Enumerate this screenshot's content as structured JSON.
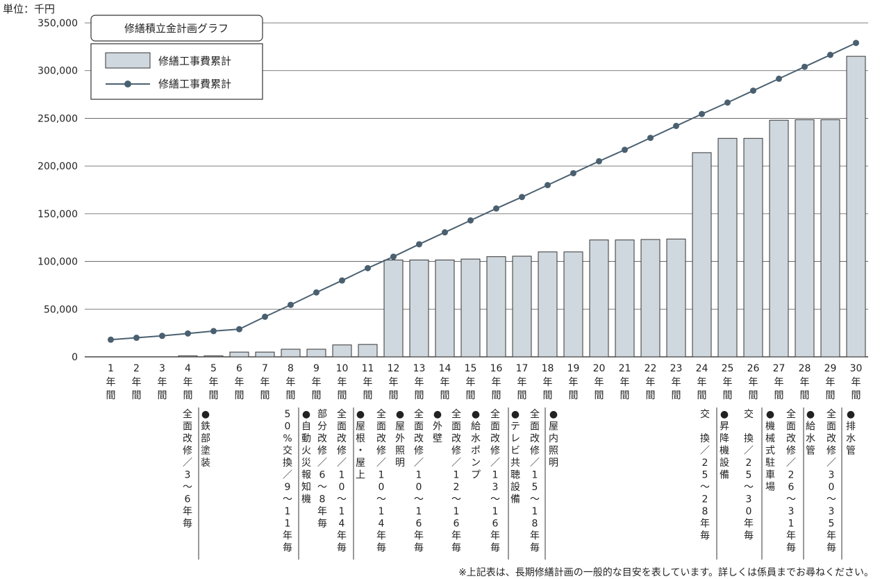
{
  "unit_label": "単位：千円",
  "footnote": "※上記表は、長期修繕計画の一般的な目安を表しています。詳しくは係員までお尋ねください。",
  "chart_data": {
    "type": "bar",
    "title": "修繕積立金計画グラフ",
    "ylim": [
      0,
      350000
    ],
    "y_ticks": [
      0,
      50000,
      100000,
      150000,
      200000,
      250000,
      300000,
      350000
    ],
    "y_tick_labels": [
      "0",
      "50,000",
      "100,000",
      "150,000",
      "200,000",
      "250,000",
      "300,000",
      "350,000"
    ],
    "grid": true,
    "legend_position": "top-left",
    "categories": [
      "1年間",
      "2年間",
      "3年間",
      "4年間",
      "5年間",
      "6年間",
      "7年間",
      "8年間",
      "9年間",
      "10年間",
      "11年間",
      "12年間",
      "13年間",
      "14年間",
      "15年間",
      "16年間",
      "17年間",
      "18年間",
      "19年間",
      "20年間",
      "21年間",
      "22年間",
      "23年間",
      "24年間",
      "25年間",
      "26年間",
      "27年間",
      "28年間",
      "29年間",
      "30年間"
    ],
    "category_numbers": [
      "1",
      "2",
      "3",
      "4",
      "5",
      "6",
      "7",
      "8",
      "9",
      "10",
      "11",
      "12",
      "13",
      "14",
      "15",
      "16",
      "17",
      "18",
      "19",
      "20",
      "21",
      "22",
      "23",
      "24",
      "25",
      "26",
      "27",
      "28",
      "29",
      "30"
    ],
    "category_suffix": [
      "年",
      "間"
    ],
    "series": [
      {
        "name": "修繕工事費累計",
        "type": "bar",
        "color": "#cfd8de",
        "values": [
          0,
          0,
          0,
          1000,
          1000,
          5000,
          5000,
          8000,
          8000,
          12500,
          13000,
          101500,
          101500,
          101500,
          102500,
          105000,
          105500,
          110000,
          110000,
          122500,
          122500,
          123000,
          123500,
          214000,
          229000,
          229000,
          248000,
          248500,
          248500,
          315000
        ]
      },
      {
        "name": "修繕工事費累計",
        "type": "line",
        "color": "#4a6070",
        "values": [
          18000,
          20000,
          22000,
          24500,
          27000,
          29000,
          42000,
          54500,
          67500,
          80000,
          93000,
          105000,
          118000,
          130500,
          143000,
          155500,
          167500,
          180000,
          192500,
          205000,
          217000,
          229500,
          242000,
          254500,
          266500,
          279000,
          291500,
          304000,
          316500,
          329000
        ]
      }
    ],
    "annotations": [
      {
        "after": 4,
        "marker": "",
        "text": "全面改修／3〜6年毎"
      },
      {
        "after": 4,
        "marker": "●",
        "text": "鉄部塗装"
      },
      {
        "after": 8,
        "marker": "",
        "text": "50%交換／9〜11年毎"
      },
      {
        "after": 8,
        "marker": "●",
        "text": "自動火災報知機"
      },
      {
        "after": 8,
        "marker": "",
        "text": "部分改修／6〜8年毎"
      },
      {
        "after": 8,
        "marker": "",
        "text": "全面改修／10〜14年毎"
      },
      {
        "after": 10,
        "marker": "●",
        "text": "屋根・屋上"
      },
      {
        "after": 10,
        "marker": "",
        "text": "全面改修／10〜14年毎"
      },
      {
        "after": 10,
        "marker": "●",
        "text": "屋外照明"
      },
      {
        "after": 10,
        "marker": "",
        "text": "全面改修／10〜16年毎"
      },
      {
        "after": 10,
        "marker": "●",
        "text": "外壁"
      },
      {
        "after": 10,
        "marker": "",
        "text": "全面改修／12〜16年毎"
      },
      {
        "after": 10,
        "marker": "●",
        "text": "給水ポンプ"
      },
      {
        "after": 10,
        "marker": "",
        "text": "全面改修／13〜16年毎"
      },
      {
        "after": 16,
        "marker": "●",
        "text": "テレビ共聴設備"
      },
      {
        "after": 16,
        "marker": "",
        "text": "全面改修／15〜18年毎"
      },
      {
        "after": 17,
        "marker": "●",
        "text": "屋内照明"
      },
      {
        "after": 23,
        "marker": "",
        "text": "交　換／25〜28年毎"
      },
      {
        "after": 23,
        "marker": "●",
        "text": "昇降機設備"
      },
      {
        "after": 23,
        "marker": "",
        "text": "交　換／25〜30年毎"
      },
      {
        "after": 26,
        "marker": "●",
        "text": "機械式駐車場"
      },
      {
        "after": 26,
        "marker": "",
        "text": "全面改修／26〜31年毎"
      },
      {
        "after": 27,
        "marker": "●",
        "text": "給水管"
      },
      {
        "after": 27,
        "marker": "",
        "text": "全面改修／30〜35年毎"
      },
      {
        "after": 28,
        "marker": "●",
        "text": "排水管"
      }
    ]
  }
}
